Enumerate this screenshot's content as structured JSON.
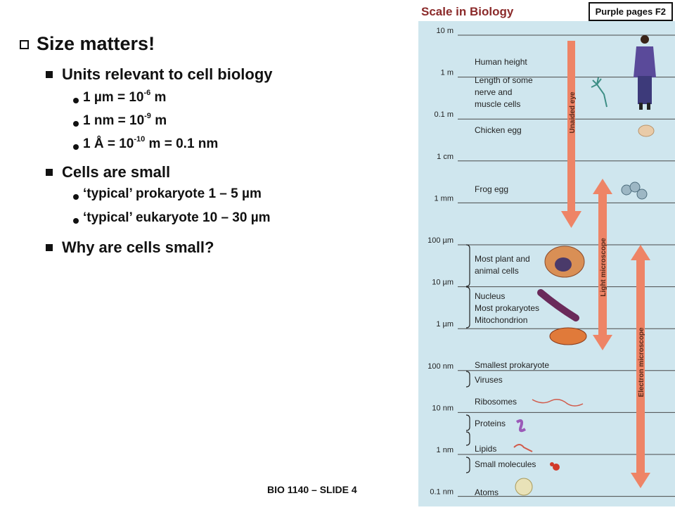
{
  "slide": {
    "heading": "Size matters!",
    "units_heading": "Units relevant to cell biology",
    "units": [
      {
        "pre": "1 µm = 10",
        "exp": "-6",
        "post": " m"
      },
      {
        "pre": "1 nm = 10",
        "exp": "-9",
        "post": " m"
      },
      {
        "pre": "1 Å = 10",
        "exp": "-10",
        "post": " m = 0.1 nm"
      }
    ],
    "cells_heading": "Cells are small",
    "cells": [
      "‘typical’ prokaryote 1 – 5 µm",
      "‘typical’ eukaryote 10 – 30 µm"
    ],
    "question": "Why are cells small?",
    "footer": "BIO 1140 – SLIDE 4"
  },
  "figure": {
    "title": "Scale in Biology",
    "reference": "Purple pages F2",
    "scale_labels": [
      "10 m",
      "1 m",
      "0.1 m",
      "1 cm",
      "1 mm",
      "100 µm",
      "10 µm",
      "1 µm",
      "100 nm",
      "10 nm",
      "1 nm",
      "0.1 nm"
    ],
    "items": {
      "human_height": "Human height",
      "nerve_1": "Length of some",
      "nerve_2": "nerve and",
      "nerve_3": "muscle cells",
      "chicken_egg": "Chicken egg",
      "frog_egg": "Frog egg",
      "plant_1": "Most plant and",
      "plant_2": "animal cells",
      "nucleus": "Nucleus",
      "prokaryotes": "Most prokaryotes",
      "mitochondrion": "Mitochondrion",
      "smallest_prokaryote": "Smallest prokaryote",
      "viruses": "Viruses",
      "ribosomes": "Ribosomes",
      "proteins": "Proteins",
      "lipids": "Lipids",
      "small_molecules": "Small molecules",
      "atoms": "Atoms"
    },
    "ranges": {
      "unaided_eye": "Unaided eye",
      "light_microscope": "Light microscope",
      "electron_microscope": "Electron microscope"
    },
    "colors": {
      "background": "#cfe6ee",
      "arrow": "#ee8466",
      "line": "#4a4a4a"
    }
  }
}
